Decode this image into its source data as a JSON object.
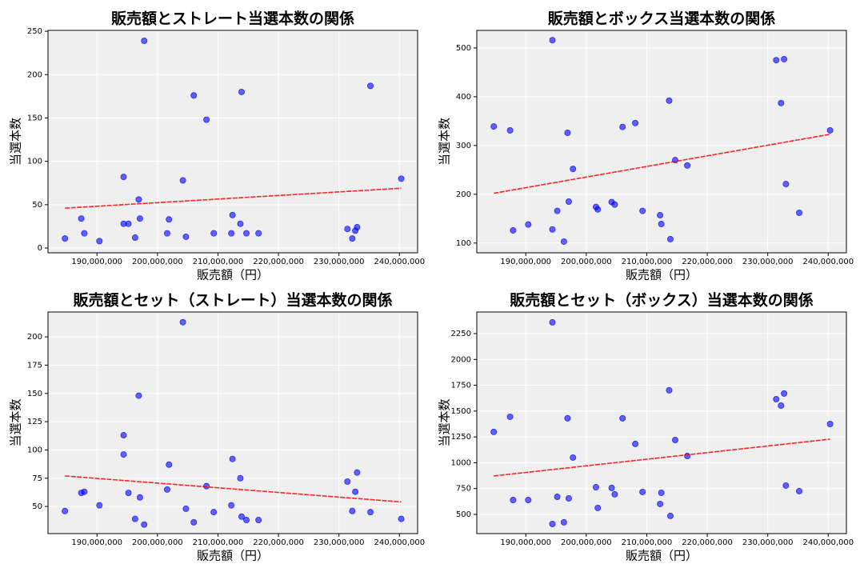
{
  "chart_data": [
    {
      "type": "scatter",
      "title": "販売額とストレート当選本数の関係",
      "xlabel": "販売額（円）",
      "ylabel": "当選本数",
      "x": [
        184700000,
        187400000,
        187900000,
        190400000,
        194400000,
        194400000,
        195200000,
        196300000,
        196900000,
        197100000,
        197800000,
        201600000,
        201900000,
        204200000,
        204700000,
        206000000,
        208100000,
        209300000,
        212200000,
        212400000,
        213700000,
        213900000,
        214700000,
        216700000,
        231400000,
        232200000,
        232700000,
        233000000,
        235200000,
        240300000
      ],
      "series": [
        {
          "color": "#0000ff",
          "values": [
            11,
            34,
            17,
            8,
            82,
            28,
            28,
            12,
            56,
            34,
            239,
            17,
            33,
            78,
            13,
            176,
            148,
            17,
            17,
            38,
            28,
            180,
            17,
            17,
            22,
            11,
            20,
            24,
            187,
            80
          ]
        }
      ],
      "trend": {
        "color": "#ff0000",
        "x": [
          184700000,
          240300000
        ],
        "values": [
          46,
          69
        ]
      },
      "xlim": [
        181900000,
        243000000
      ],
      "ylim": [
        -5.5,
        251
      ],
      "xticks": [
        {
          "value": 190000000,
          "label": "190,000,000"
        },
        {
          "value": 200000000,
          "label": "200,000,000"
        },
        {
          "value": 210000000,
          "label": "210,000,000"
        },
        {
          "value": 220000000,
          "label": "220,000,000"
        },
        {
          "value": 230000000,
          "label": "230,000,000"
        },
        {
          "value": 240000000,
          "label": "240,000,000"
        }
      ],
      "yticks": [
        0,
        50,
        100,
        150,
        200,
        250
      ],
      "grid": true
    },
    {
      "type": "scatter",
      "title": "販売額とボックス当選本数の関係",
      "xlabel": "販売額（円）",
      "ylabel": "当選本数",
      "x": [
        184700000,
        187400000,
        187900000,
        190400000,
        194400000,
        194400000,
        195200000,
        196300000,
        196900000,
        197100000,
        197800000,
        201600000,
        201900000,
        204200000,
        204700000,
        206000000,
        208100000,
        209300000,
        212200000,
        212400000,
        213700000,
        213900000,
        214700000,
        216700000,
        231400000,
        232200000,
        232700000,
        233000000,
        235200000,
        240300000
      ],
      "series": [
        {
          "color": "#0000ff",
          "values": [
            339,
            331,
            126,
            138,
            516,
            128,
            166,
            103,
            326,
            185,
            252,
            174,
            169,
            184,
            179,
            338,
            346,
            166,
            157,
            139,
            392,
            108,
            270,
            259,
            475,
            387,
            477,
            221,
            162,
            331
          ]
        }
      ],
      "trend": {
        "color": "#ff0000",
        "x": [
          184700000,
          240300000
        ],
        "values": [
          202,
          323
        ]
      },
      "xlim": [
        181900000,
        243000000
      ],
      "ylim": [
        80,
        536
      ],
      "xticks": [
        {
          "value": 190000000,
          "label": "190,000,000"
        },
        {
          "value": 200000000,
          "label": "200,000,000"
        },
        {
          "value": 210000000,
          "label": "210,000,000"
        },
        {
          "value": 220000000,
          "label": "220,000,000"
        },
        {
          "value": 230000000,
          "label": "230,000,000"
        },
        {
          "value": 240000000,
          "label": "240,000,000"
        }
      ],
      "yticks": [
        100,
        200,
        300,
        400,
        500
      ],
      "grid": true
    },
    {
      "type": "scatter",
      "title": "販売額とセット（ストレート）当選本数の関係",
      "xlabel": "販売額（円）",
      "ylabel": "当選本数",
      "x": [
        184700000,
        187400000,
        187900000,
        190400000,
        194400000,
        194400000,
        195200000,
        196300000,
        196900000,
        197100000,
        197800000,
        201600000,
        201900000,
        204200000,
        204700000,
        206000000,
        208100000,
        209300000,
        212200000,
        212400000,
        213700000,
        213900000,
        214700000,
        216700000,
        231400000,
        232200000,
        232700000,
        233000000,
        235200000,
        240300000
      ],
      "series": [
        {
          "color": "#0000ff",
          "values": [
            46,
            62,
            63,
            51,
            113,
            96,
            62,
            39,
            148,
            58,
            34,
            65,
            87,
            213,
            48,
            36,
            68,
            45,
            51,
            92,
            75,
            41,
            38,
            38,
            72,
            46,
            63,
            80,
            45,
            39
          ]
        }
      ],
      "trend": {
        "color": "#ff0000",
        "x": [
          184700000,
          240300000
        ],
        "values": [
          77,
          54
        ]
      },
      "xlim": [
        181900000,
        243000000
      ],
      "ylim": [
        26,
        222
      ],
      "xticks": [
        {
          "value": 190000000,
          "label": "190,000,000"
        },
        {
          "value": 200000000,
          "label": "200,000,000"
        },
        {
          "value": 210000000,
          "label": "210,000,000"
        },
        {
          "value": 220000000,
          "label": "220,000,000"
        },
        {
          "value": 230000000,
          "label": "230,000,000"
        },
        {
          "value": 240000000,
          "label": "240,000,000"
        }
      ],
      "yticks": [
        50,
        75,
        100,
        125,
        150,
        175,
        200
      ],
      "grid": true
    },
    {
      "type": "scatter",
      "title": "販売額とセット（ボックス）当選本数の関係",
      "xlabel": "販売額（円）",
      "ylabel": "当選本数",
      "x": [
        184700000,
        187400000,
        187900000,
        190400000,
        194400000,
        194400000,
        195200000,
        196300000,
        196900000,
        197100000,
        197800000,
        201600000,
        201900000,
        204200000,
        204700000,
        206000000,
        208100000,
        209300000,
        212200000,
        212400000,
        213700000,
        213900000,
        214700000,
        216700000,
        231400000,
        232200000,
        232700000,
        233000000,
        235200000,
        240300000
      ],
      "series": [
        {
          "color": "#0000ff",
          "values": [
            1298,
            1445,
            639,
            639,
            2359,
            407,
            670,
            423,
            1430,
            655,
            1050,
            763,
            562,
            756,
            694,
            1430,
            1182,
            717,
            601,
            709,
            1701,
            485,
            1220,
            1065,
            1615,
            1553,
            1670,
            779,
            725,
            1375
          ]
        }
      ],
      "trend": {
        "color": "#ff0000",
        "x": [
          184700000,
          240300000
        ],
        "values": [
          872,
          1228
        ]
      },
      "xlim": [
        181900000,
        243000000
      ],
      "ylim": [
        314,
        2459
      ],
      "xticks": [
        {
          "value": 190000000,
          "label": "190,000,000"
        },
        {
          "value": 200000000,
          "label": "200,000,000"
        },
        {
          "value": 210000000,
          "label": "210,000,000"
        },
        {
          "value": 220000000,
          "label": "220,000,000"
        },
        {
          "value": 230000000,
          "label": "230,000,000"
        },
        {
          "value": 240000000,
          "label": "240,000,000"
        }
      ],
      "yticks": [
        500,
        750,
        1000,
        1250,
        1500,
        1750,
        2000,
        2250
      ],
      "grid": true
    }
  ]
}
